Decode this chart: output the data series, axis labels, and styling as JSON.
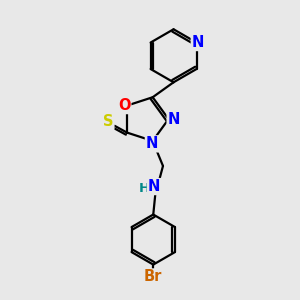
{
  "bg_color": "#e8e8e8",
  "bond_color": "#000000",
  "bond_width": 1.6,
  "atom_colors": {
    "N": "#0000ff",
    "O": "#ff0000",
    "S": "#cccc00",
    "Br": "#cc6600",
    "H": "#008888",
    "C": "#000000"
  },
  "font_size": 9.5,
  "fig_size": [
    3.0,
    3.0
  ],
  "dpi": 100
}
